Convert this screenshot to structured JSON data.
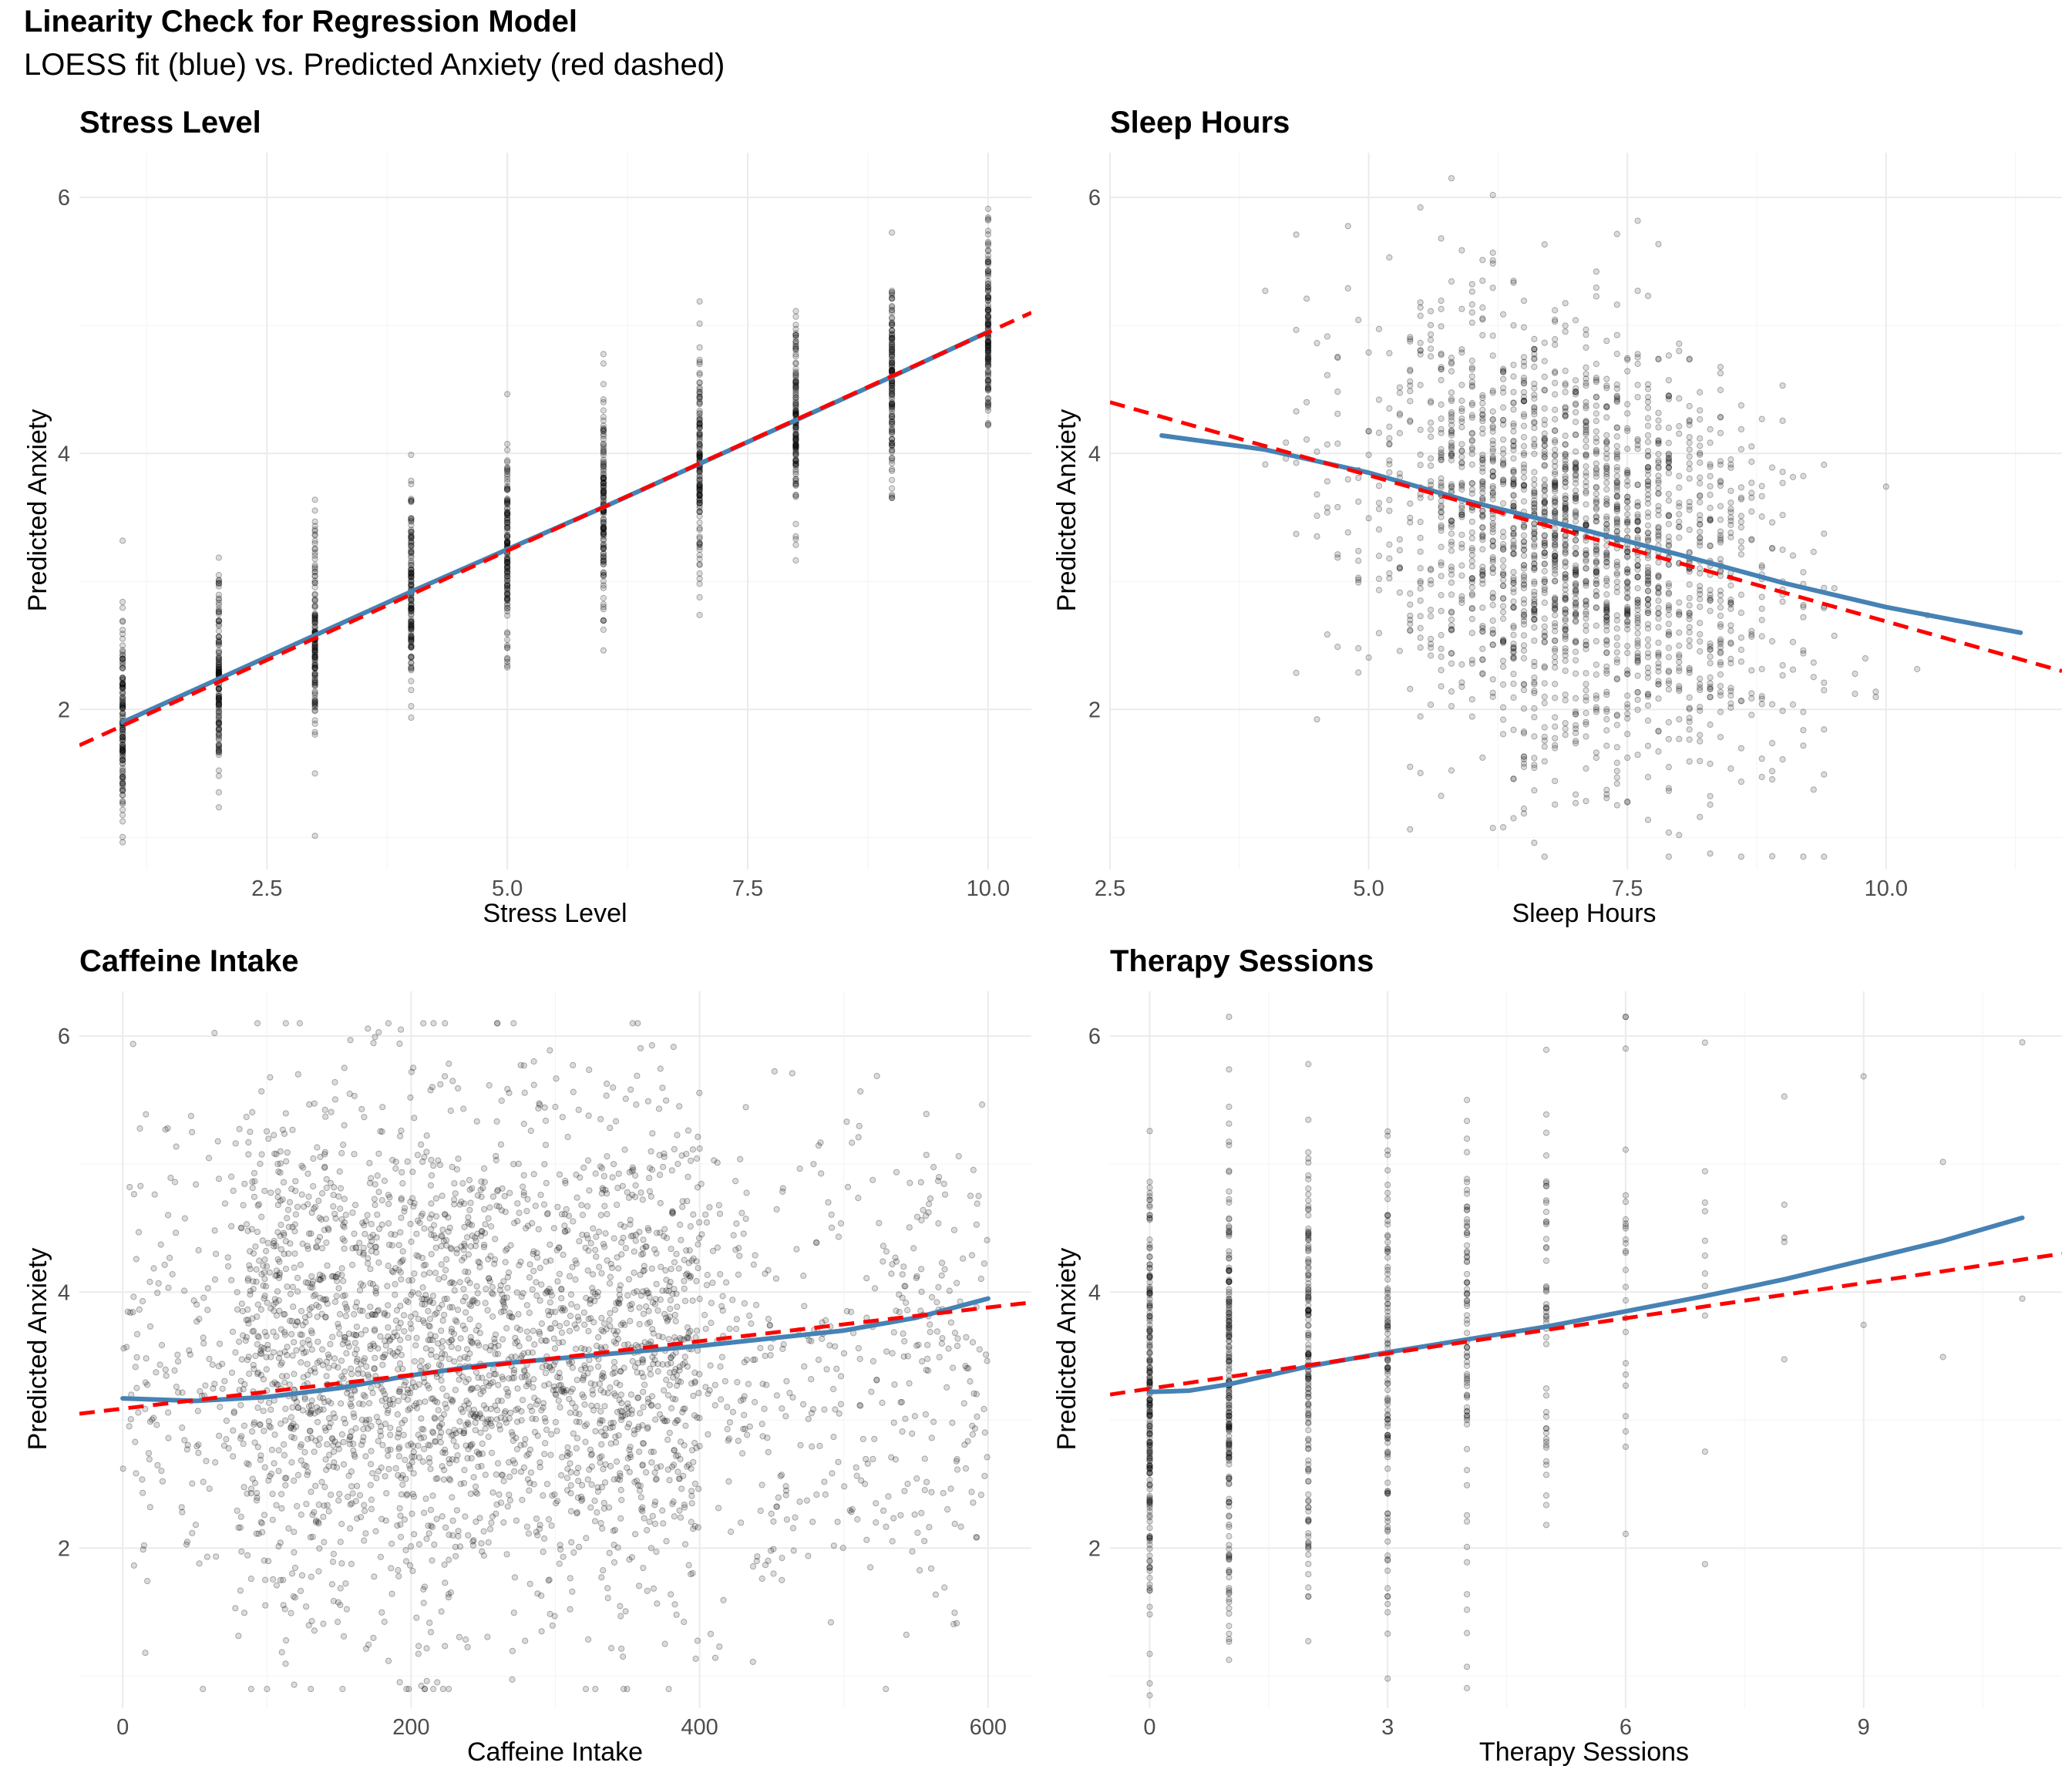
{
  "figure": {
    "title": "Linearity Check for Regression Model",
    "subtitle": "LOESS fit (blue) vs. Predicted Anxiety (red dashed)"
  },
  "colors": {
    "loess": "#4682B4",
    "ols": "#FF0000",
    "points": "#000000",
    "grid": "#EBEBEB"
  },
  "chart_data": [
    {
      "type": "scatter",
      "title": "Stress Level",
      "xlabel": "Stress Level",
      "ylabel": "Predicted Anxiety",
      "xlim": [
        0.55,
        10.45
      ],
      "ylim": [
        0.75,
        6.35
      ],
      "xticks": [
        "2.5",
        "5.0",
        "7.5",
        "10.0"
      ],
      "xtick_values": [
        2.5,
        5.0,
        7.5,
        10.0
      ],
      "yticks": [
        "2",
        "4",
        "6"
      ],
      "ytick_values": [
        2,
        4,
        6
      ],
      "point_distribution": {
        "x_discrete": [
          1,
          2,
          3,
          4,
          5,
          6,
          7,
          8,
          9,
          10
        ],
        "y_center_at_x1": 1.9,
        "y_center_at_x10": 4.95,
        "y_spread_sd": 0.4
      },
      "series": [
        {
          "name": "LOESS fit (blue)",
          "style": "solid",
          "x": [
            1,
            2,
            3,
            4,
            5,
            6,
            7,
            8,
            9,
            10
          ],
          "y": [
            1.9,
            2.24,
            2.58,
            2.92,
            3.25,
            3.58,
            3.92,
            4.26,
            4.6,
            4.95
          ]
        },
        {
          "name": "Predicted Anxiety (red dashed)",
          "style": "dashed",
          "x": [
            0.55,
            10.45
          ],
          "y": [
            1.72,
            5.1
          ]
        }
      ]
    },
    {
      "type": "scatter",
      "title": "Sleep Hours",
      "xlabel": "Sleep Hours",
      "ylabel": "Predicted Anxiety",
      "xlim": [
        2.5,
        11.7
      ],
      "ylim": [
        0.75,
        6.35
      ],
      "xticks": [
        "2.5",
        "5.0",
        "7.5",
        "10.0"
      ],
      "xtick_values": [
        2.5,
        5.0,
        7.5,
        10.0
      ],
      "yticks": [
        "2",
        "4",
        "6"
      ],
      "ytick_values": [
        2,
        4,
        6
      ],
      "point_distribution": {
        "x_mean": 7.0,
        "x_sd": 1.0,
        "y_intercept": 5.0,
        "y_slope": -0.24,
        "y_spread_sd": 0.85
      },
      "series": [
        {
          "name": "LOESS fit (blue)",
          "style": "solid",
          "x": [
            3.0,
            4.0,
            5.0,
            6.0,
            7.0,
            8.0,
            9.0,
            10.0,
            11.3
          ],
          "y": [
            4.14,
            4.03,
            3.85,
            3.62,
            3.42,
            3.21,
            2.99,
            2.8,
            2.6
          ]
        },
        {
          "name": "Predicted Anxiety (red dashed)",
          "style": "dashed",
          "x": [
            2.5,
            11.7
          ],
          "y": [
            4.4,
            2.3
          ]
        }
      ]
    },
    {
      "type": "scatter",
      "title": "Caffeine Intake",
      "xlabel": "Caffeine Intake",
      "ylabel": "Predicted Anxiety",
      "xlim": [
        -30,
        630
      ],
      "ylim": [
        0.75,
        6.35
      ],
      "xticks": [
        "0",
        "200",
        "400",
        "600"
      ],
      "xtick_values": [
        0,
        200,
        400,
        600
      ],
      "yticks": [
        "2",
        "4",
        "6"
      ],
      "ytick_values": [
        2,
        4,
        6
      ],
      "point_distribution": {
        "x_range": [
          0,
          600
        ],
        "x_dense_range": [
          80,
          400
        ],
        "y_mean": 3.5,
        "y_spread_sd": 1.0
      },
      "series": [
        {
          "name": "LOESS fit (blue)",
          "style": "solid",
          "x": [
            0,
            50,
            100,
            150,
            200,
            250,
            300,
            350,
            400,
            450,
            500,
            550,
            600
          ],
          "y": [
            3.17,
            3.15,
            3.18,
            3.25,
            3.35,
            3.43,
            3.48,
            3.53,
            3.58,
            3.64,
            3.7,
            3.8,
            3.95
          ]
        },
        {
          "name": "Predicted Anxiety (red dashed)",
          "style": "dashed",
          "x": [
            -30,
            630
          ],
          "y": [
            3.05,
            3.92
          ]
        }
      ]
    },
    {
      "type": "scatter",
      "title": "Therapy Sessions",
      "xlabel": "Therapy Sessions",
      "ylabel": "Predicted Anxiety",
      "xlim": [
        -0.5,
        11.5
      ],
      "ylim": [
        0.75,
        6.35
      ],
      "xticks": [
        "0",
        "3",
        "6",
        "9"
      ],
      "xtick_values": [
        0,
        3,
        6,
        9
      ],
      "yticks": [
        "2",
        "4",
        "6"
      ],
      "ytick_values": [
        2,
        4,
        6
      ],
      "point_distribution": {
        "x_discrete": [
          0,
          1,
          2,
          3,
          4,
          5,
          6,
          7,
          8,
          9,
          10,
          11
        ],
        "x_counts_relative": [
          1300,
          1200,
          900,
          700,
          500,
          320,
          160,
          70,
          30,
          10,
          3,
          2
        ]
      },
      "series": [
        {
          "name": "LOESS fit (blue)",
          "style": "solid",
          "x": [
            0,
            0.5,
            1,
            2,
            3,
            4,
            5,
            6,
            7,
            8,
            9,
            10,
            11
          ],
          "y": [
            3.22,
            3.23,
            3.28,
            3.42,
            3.53,
            3.63,
            3.73,
            3.85,
            3.97,
            4.1,
            4.25,
            4.4,
            4.58
          ]
        },
        {
          "name": "Predicted Anxiety (red dashed)",
          "style": "dashed",
          "x": [
            -0.5,
            11.5
          ],
          "y": [
            3.2,
            4.3
          ]
        }
      ]
    }
  ]
}
